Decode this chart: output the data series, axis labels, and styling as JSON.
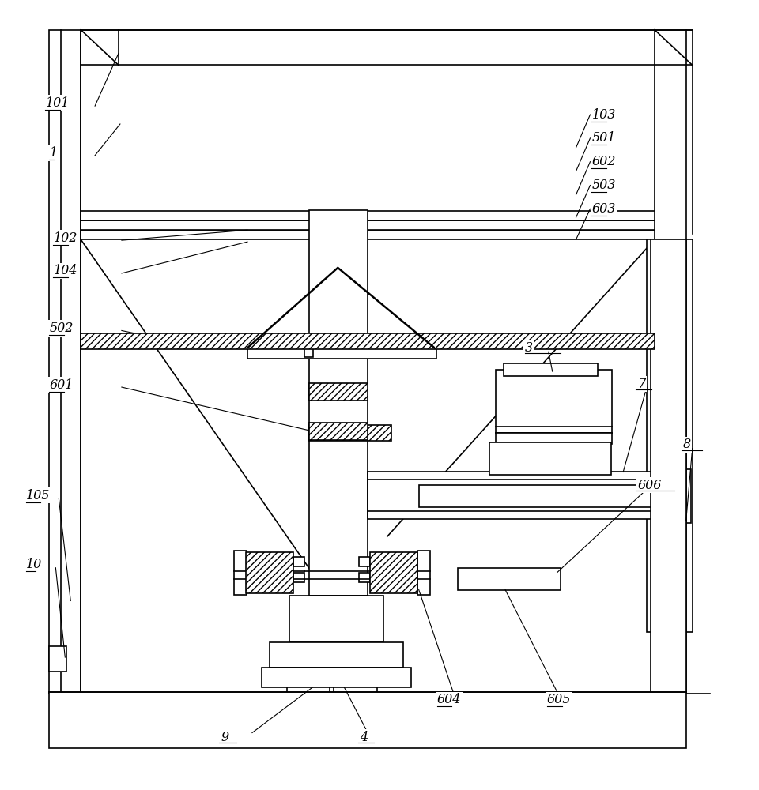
{
  "bg_color": "#ffffff",
  "lc": "#000000",
  "lw": 1.2,
  "fig_w": 9.6,
  "fig_h": 10.0
}
